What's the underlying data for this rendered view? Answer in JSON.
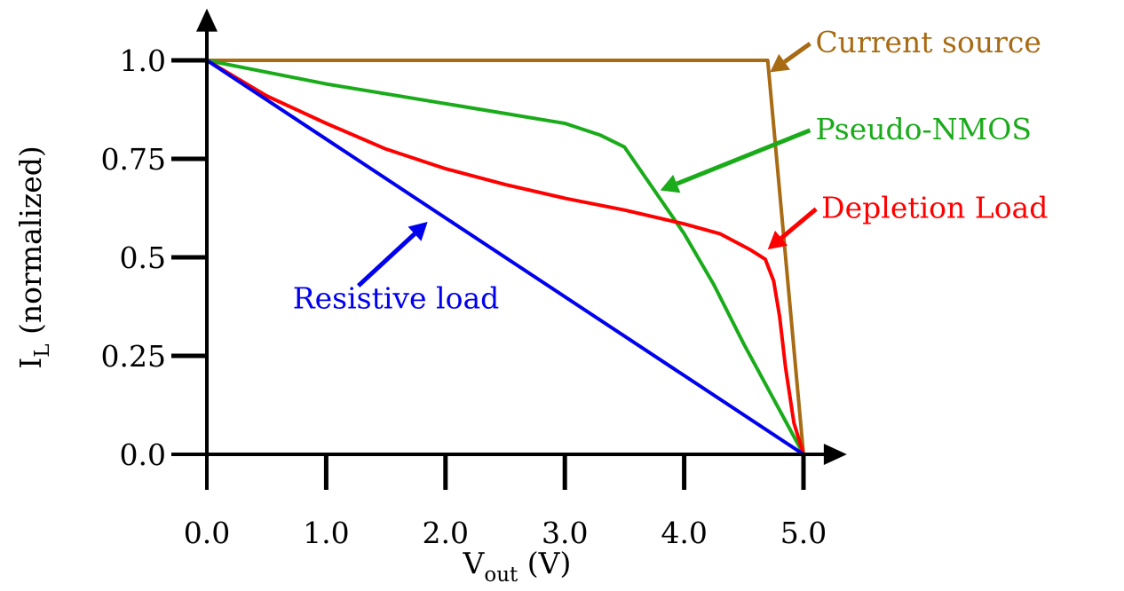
{
  "chart_data": {
    "type": "line",
    "xlabel": {
      "main": "V",
      "sub": "out",
      "unit": " (V)"
    },
    "ylabel": {
      "main": "I",
      "sub": "L",
      "unit": " (normalized)"
    },
    "xlim": [
      0,
      5.2
    ],
    "ylim": [
      0,
      1.1
    ],
    "x_ticks": [
      {
        "value": 0,
        "label": "0.0"
      },
      {
        "value": 1,
        "label": "1.0"
      },
      {
        "value": 2,
        "label": "2.0"
      },
      {
        "value": 3,
        "label": "3.0"
      },
      {
        "value": 4,
        "label": "4.0"
      },
      {
        "value": 5,
        "label": "5.0"
      }
    ],
    "y_ticks": [
      {
        "value": 0,
        "label": "0.0"
      },
      {
        "value": 0.25,
        "label": "0.25"
      },
      {
        "value": 0.5,
        "label": "0.5"
      },
      {
        "value": 0.75,
        "label": "0.75"
      },
      {
        "value": 1,
        "label": "1.0"
      }
    ],
    "grid": false,
    "series": [
      {
        "name": "Current source",
        "color": "#a86b14",
        "points": [
          [
            0,
            1.0
          ],
          [
            4.7,
            1.0
          ],
          [
            5.0,
            0.0
          ]
        ],
        "label_anchor": [
          4.72,
          0.97
        ],
        "label_pos": [
          5.1,
          1.02
        ]
      },
      {
        "name": "Pseudo-NMOS",
        "color": "#1aab1a",
        "points": [
          [
            0,
            1.0
          ],
          [
            0.5,
            0.97
          ],
          [
            1.0,
            0.94
          ],
          [
            1.5,
            0.915
          ],
          [
            2.0,
            0.89
          ],
          [
            2.5,
            0.865
          ],
          [
            3.0,
            0.84
          ],
          [
            3.3,
            0.81
          ],
          [
            3.5,
            0.78
          ],
          [
            3.75,
            0.67
          ],
          [
            4.0,
            0.56
          ],
          [
            4.25,
            0.43
          ],
          [
            4.5,
            0.28
          ],
          [
            4.75,
            0.14
          ],
          [
            5.0,
            0.0
          ]
        ],
        "label_anchor": [
          3.8,
          0.67
        ],
        "label_pos": [
          5.1,
          0.8
        ]
      },
      {
        "name": "Depletion Load",
        "color": "#ff0000",
        "points": [
          [
            0,
            1.0
          ],
          [
            0.5,
            0.91
          ],
          [
            1.0,
            0.84
          ],
          [
            1.5,
            0.775
          ],
          [
            2.0,
            0.725
          ],
          [
            2.5,
            0.685
          ],
          [
            3.0,
            0.65
          ],
          [
            3.5,
            0.62
          ],
          [
            4.0,
            0.585
          ],
          [
            4.3,
            0.56
          ],
          [
            4.55,
            0.52
          ],
          [
            4.68,
            0.495
          ],
          [
            4.75,
            0.44
          ],
          [
            4.8,
            0.35
          ],
          [
            4.85,
            0.22
          ],
          [
            4.92,
            0.08
          ],
          [
            5.0,
            0.0
          ]
        ],
        "label_anchor": [
          4.7,
          0.52
        ],
        "label_pos": [
          5.15,
          0.6
        ]
      },
      {
        "name": "Resistive load",
        "color": "#0000ee",
        "points": [
          [
            0,
            1.0
          ],
          [
            5.0,
            0.0
          ]
        ],
        "label_anchor": [
          1.85,
          0.59
        ],
        "label_pos": [
          1.4,
          0.37
        ]
      }
    ]
  }
}
